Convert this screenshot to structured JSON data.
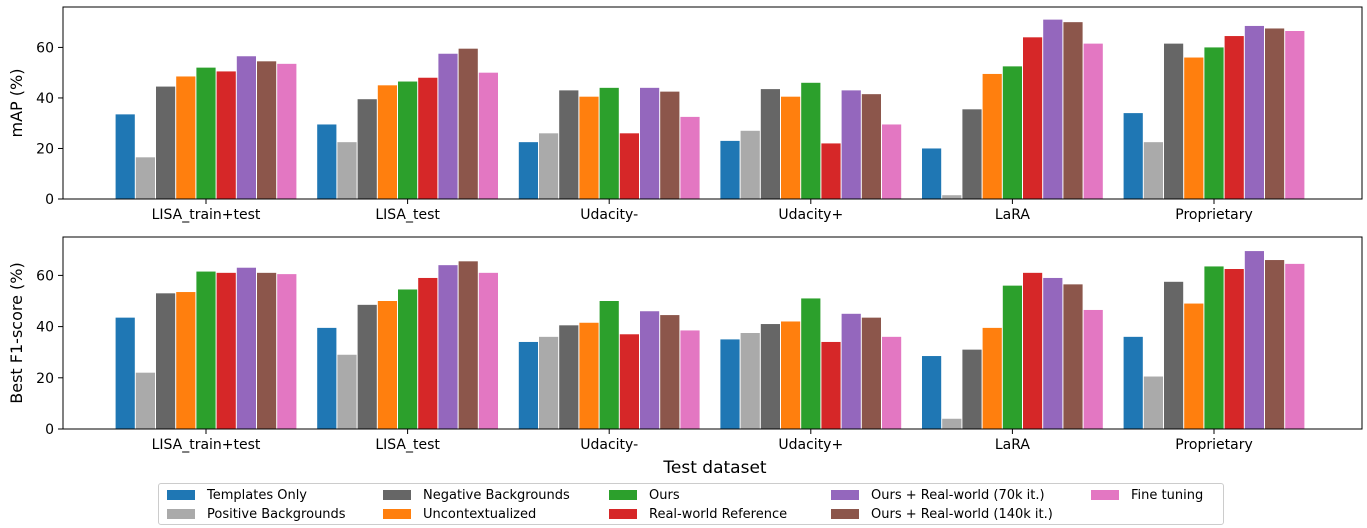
{
  "chart_data": [
    {
      "type": "bar",
      "ylabel": "mAP (%)",
      "xlabel": "",
      "ylim": [
        0,
        76
      ],
      "yticks": [
        0,
        20,
        40,
        60
      ],
      "categories": [
        "LISA_train+test",
        "LISA_test",
        "Udacity-",
        "Udacity+",
        "LaRA",
        "Proprietary"
      ],
      "series": [
        {
          "name": "Templates Only",
          "color": "#1f77b4",
          "values": [
            33.5,
            29.5,
            22.5,
            23,
            20,
            34
          ]
        },
        {
          "name": "Positive Backgrounds",
          "color": "#aaaaaa",
          "values": [
            16.5,
            22.5,
            26,
            27,
            1.5,
            22.5
          ]
        },
        {
          "name": "Negative Backgrounds",
          "color": "#666666",
          "values": [
            44.5,
            39.5,
            43,
            43.5,
            35.5,
            61.5
          ]
        },
        {
          "name": "Uncontextualized",
          "color": "#ff7f0e",
          "values": [
            48.5,
            45,
            40.5,
            40.5,
            49.5,
            56
          ]
        },
        {
          "name": "Ours",
          "color": "#2ca02c",
          "values": [
            52,
            46.5,
            44,
            46,
            52.5,
            60
          ]
        },
        {
          "name": "Real-world Reference",
          "color": "#d62728",
          "values": [
            50.5,
            48,
            26,
            22,
            64,
            64.5
          ]
        },
        {
          "name": "Ours + Real-world (70k it.)",
          "color": "#9467bd",
          "values": [
            56.5,
            57.5,
            44,
            43,
            71,
            68.5
          ]
        },
        {
          "name": "Ours + Real-world (140k it.)",
          "color": "#8c564b",
          "values": [
            54.5,
            59.5,
            42.5,
            41.5,
            70,
            67.5
          ]
        },
        {
          "name": "Fine tuning",
          "color": "#e377c2",
          "values": [
            53.5,
            50,
            32.5,
            29.5,
            61.5,
            66.5
          ]
        }
      ]
    },
    {
      "type": "bar",
      "ylabel": "Best F1-score (%)",
      "xlabel": "Test dataset",
      "ylim": [
        0,
        75
      ],
      "yticks": [
        0,
        20,
        40,
        60
      ],
      "categories": [
        "LISA_train+test",
        "LISA_test",
        "Udacity-",
        "Udacity+",
        "LaRA",
        "Proprietary"
      ],
      "series": [
        {
          "name": "Templates Only",
          "color": "#1f77b4",
          "values": [
            43.5,
            39.5,
            34,
            35,
            28.5,
            36
          ]
        },
        {
          "name": "Positive Backgrounds",
          "color": "#aaaaaa",
          "values": [
            22,
            29,
            36,
            37.5,
            4,
            20.5
          ]
        },
        {
          "name": "Negative Backgrounds",
          "color": "#666666",
          "values": [
            53,
            48.5,
            40.5,
            41,
            31,
            57.5
          ]
        },
        {
          "name": "Uncontextualized",
          "color": "#ff7f0e",
          "values": [
            53.5,
            50,
            41.5,
            42,
            39.5,
            49
          ]
        },
        {
          "name": "Ours",
          "color": "#2ca02c",
          "values": [
            61.5,
            54.5,
            50,
            51,
            56,
            63.5
          ]
        },
        {
          "name": "Real-world Reference",
          "color": "#d62728",
          "values": [
            61,
            59,
            37,
            34,
            61,
            62.5
          ]
        },
        {
          "name": "Ours + Real-world (70k it.)",
          "color": "#9467bd",
          "values": [
            63,
            64,
            46,
            45,
            59,
            69.5
          ]
        },
        {
          "name": "Ours + Real-world (140k it.)",
          "color": "#8c564b",
          "values": [
            61,
            65.5,
            44.5,
            43.5,
            56.5,
            66
          ]
        },
        {
          "name": "Fine tuning",
          "color": "#e377c2",
          "values": [
            60.5,
            61,
            38.5,
            36,
            46.5,
            64.5
          ]
        }
      ]
    }
  ],
  "legend": {
    "placement": "bottom-center",
    "items": [
      {
        "label": "Templates Only",
        "color": "#1f77b4"
      },
      {
        "label": "Positive Backgrounds",
        "color": "#aaaaaa"
      },
      {
        "label": "Negative Backgrounds",
        "color": "#666666"
      },
      {
        "label": "Uncontextualized",
        "color": "#ff7f0e"
      },
      {
        "label": "Ours",
        "color": "#2ca02c"
      },
      {
        "label": "Real-world Reference",
        "color": "#d62728"
      },
      {
        "label": "Ours + Real-world (70k it.)",
        "color": "#9467bd"
      },
      {
        "label": "Ours + Real-world (140k it.)",
        "color": "#8c564b"
      },
      {
        "label": "Fine tuning",
        "color": "#e377c2"
      }
    ]
  }
}
